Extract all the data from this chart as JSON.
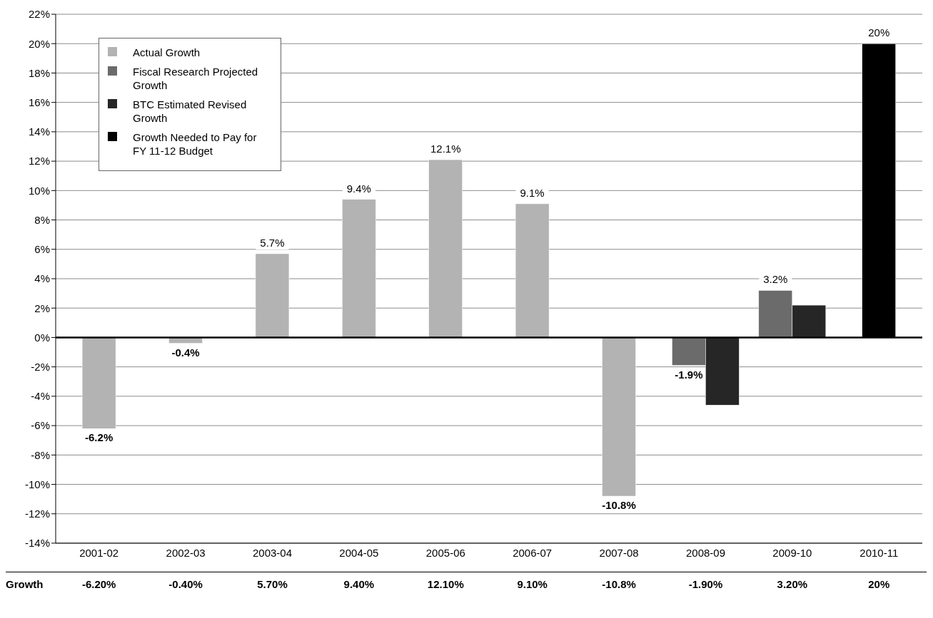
{
  "chart_data": {
    "type": "bar",
    "categories": [
      "2001-02",
      "2002-03",
      "2003-04",
      "2004-05",
      "2005-06",
      "2006-07",
      "2007-08",
      "2008-09",
      "2009-10",
      "2010-11"
    ],
    "series": [
      {
        "name": "Actual Growth",
        "color": "#b3b3b3",
        "values": [
          -6.2,
          -0.4,
          5.7,
          9.4,
          12.1,
          9.1,
          -10.8,
          null,
          null,
          null
        ],
        "value_labels": [
          "-6.2%",
          "-0.4%",
          "5.7%",
          "9.4%",
          "12.1%",
          "9.1%",
          "-10.8%",
          null,
          null,
          null
        ]
      },
      {
        "name": "Fiscal Research Projected Growth",
        "color": "#6b6b6b",
        "values": [
          null,
          null,
          null,
          null,
          null,
          null,
          null,
          -1.9,
          3.2,
          null
        ],
        "value_labels": [
          null,
          null,
          null,
          null,
          null,
          null,
          null,
          "-1.9%",
          "3.2%",
          null
        ]
      },
      {
        "name": "BTC Estimated Revised Growth",
        "color": "#262626",
        "values": [
          null,
          null,
          null,
          null,
          null,
          null,
          null,
          -4.6,
          2.2,
          null
        ]
      },
      {
        "name": "Growth Needed to Pay for FY 11-12 Budget",
        "color": "#000000",
        "values": [
          null,
          null,
          null,
          null,
          null,
          null,
          null,
          null,
          null,
          20
        ],
        "value_labels": [
          null,
          null,
          null,
          null,
          null,
          null,
          null,
          null,
          null,
          "20%"
        ]
      }
    ],
    "ylim": [
      -14,
      22
    ],
    "yticks": [
      {
        "value": -14,
        "label": "-14%"
      },
      {
        "value": -12,
        "label": "-12%"
      },
      {
        "value": -10,
        "label": "-10%"
      },
      {
        "value": -8,
        "label": "-8%"
      },
      {
        "value": -6,
        "label": "-6%"
      },
      {
        "value": -4,
        "label": "-4%"
      },
      {
        "value": -2,
        "label": "-2%"
      },
      {
        "value": 0,
        "label": "0%"
      },
      {
        "value": 2,
        "label": "2%"
      },
      {
        "value": 4,
        "label": "4%"
      },
      {
        "value": 6,
        "label": "6%"
      },
      {
        "value": 8,
        "label": "8%"
      },
      {
        "value": 10,
        "label": "10%"
      },
      {
        "value": 12,
        "label": "12%"
      },
      {
        "value": 14,
        "label": "14%"
      },
      {
        "value": 16,
        "label": "16%"
      },
      {
        "value": 18,
        "label": "18%"
      },
      {
        "value": 20,
        "label": "20%"
      },
      {
        "value": 22,
        "label": "22%"
      }
    ],
    "grid": "y",
    "legend": "top left",
    "ref_lines": [
      {
        "axis": "y",
        "value": 0,
        "color": "#000000"
      }
    ],
    "annotations": [
      "Growth",
      "-6.20%",
      "-0.40%",
      "5.70%",
      "9.40%",
      "12.10%",
      "9.10%",
      "-10.8%",
      "-1.90%",
      "3.20%",
      "20%"
    ]
  }
}
